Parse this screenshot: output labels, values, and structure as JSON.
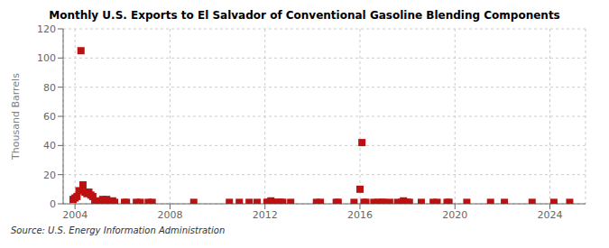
{
  "chart_data": {
    "type": "scatter",
    "title": "Monthly U.S. Exports to El Salvador of Conventional Gasoline Blending Components",
    "y_label": "Thousand Barrels",
    "annotations": [
      "Source: U.S. Energy Information Administration"
    ],
    "color": "#bb1111",
    "marker": "square",
    "grid": true,
    "xlim": [
      2003.5,
      2025.5
    ],
    "xticks": [
      2004,
      2008,
      2012,
      2016,
      2020,
      2024
    ],
    "ylim": [
      0,
      120
    ],
    "yticks": [
      0,
      20,
      40,
      60,
      80,
      100,
      120
    ],
    "x": [
      2003.917,
      2004.0,
      2004.083,
      2004.167,
      2004.25,
      2004.333,
      2004.417,
      2004.5,
      2004.583,
      2004.667,
      2004.75,
      2004.833,
      2004.917,
      2005.0,
      2005.083,
      2005.167,
      2005.25,
      2005.333,
      2005.5,
      2005.583,
      2005.667,
      2006.083,
      2006.167,
      2006.583,
      2006.75,
      2007.083,
      2007.25,
      2009.0,
      2010.5,
      2010.917,
      2011.333,
      2011.667,
      2012.083,
      2012.167,
      2012.25,
      2012.333,
      2012.5,
      2012.583,
      2012.667,
      2012.75,
      2013.083,
      2014.167,
      2014.333,
      2015.0,
      2015.083,
      2015.75,
      2016.0,
      2016.083,
      2016.167,
      2016.25,
      2016.583,
      2016.75,
      2016.917,
      2017.0,
      2017.25,
      2017.583,
      2017.75,
      2017.833,
      2017.917,
      2018.0,
      2018.083,
      2018.583,
      2019.083,
      2019.25,
      2019.667,
      2019.75,
      2020.5,
      2021.5,
      2022.083,
      2023.25,
      2024.167,
      2024.833
    ],
    "values": [
      3,
      4,
      5,
      9,
      105,
      13,
      8,
      7,
      8,
      6,
      5,
      1,
      1,
      2,
      1,
      3,
      1,
      3,
      1,
      2,
      1,
      1,
      1,
      1,
      1,
      1,
      1,
      1,
      1,
      1,
      1,
      1,
      1,
      1,
      2,
      1,
      1,
      1,
      1,
      1,
      1,
      1,
      1,
      1,
      1,
      1,
      10,
      42,
      1,
      1,
      1,
      1,
      1,
      1,
      1,
      1,
      1,
      2,
      1,
      1,
      1,
      1,
      1,
      1,
      1,
      1,
      1,
      1,
      1,
      1,
      1,
      1
    ]
  }
}
